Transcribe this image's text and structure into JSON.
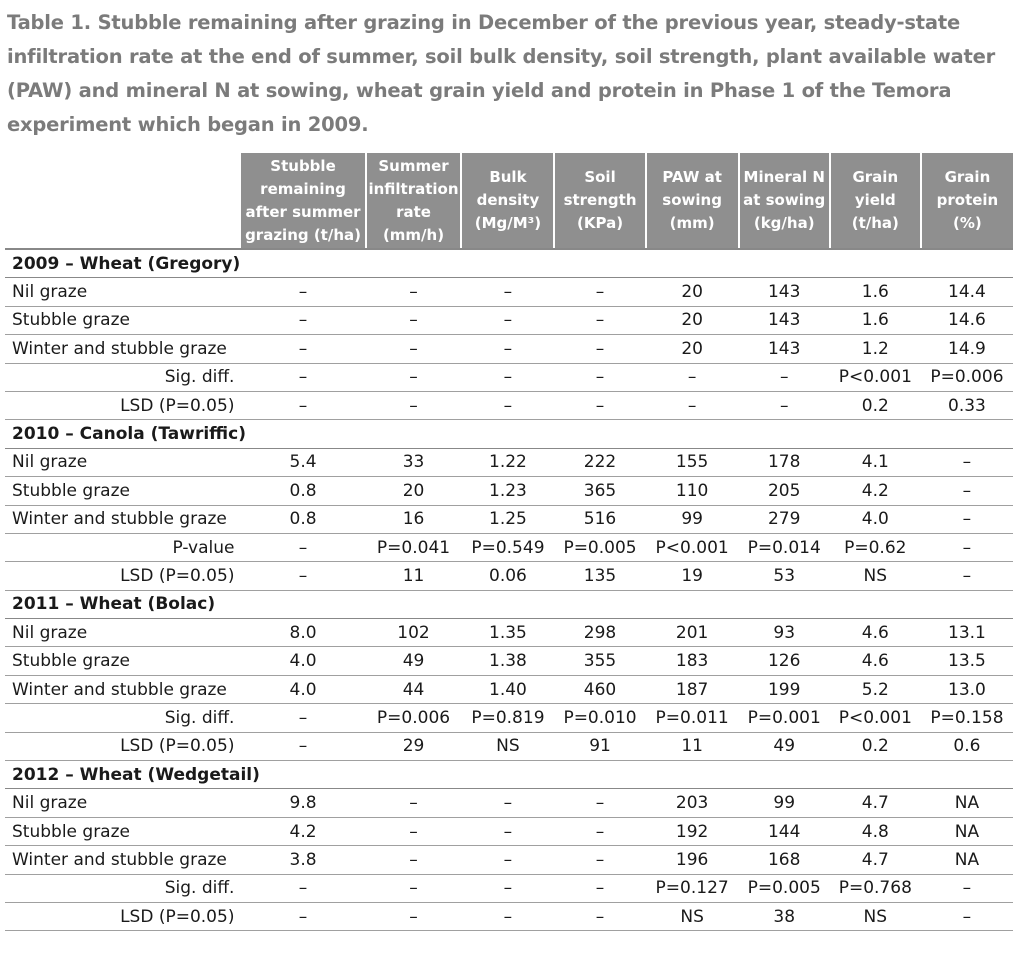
{
  "title": "Table 1. Stubble remaining after grazing in December of the previous year, steady-state infiltration rate at the end of summer, soil bulk density, soil strength, plant available water (PAW) and mineral N at sowing, wheat grain yield and protein in Phase 1 of the Temora experiment which began in 2009.",
  "columns": [
    "Stubble remaining after summer grazing (t/ha)",
    "Summer infiltration rate (mm/h)",
    "Bulk density (Mg/M³)",
    "Soil strength (KPa)",
    "PAW at sowing (mm)",
    "Mineral N at sowing (kg/ha)",
    "Grain yield (t/ha)",
    "Grain protein (%)"
  ],
  "groups": [
    {
      "name": "2009 – Wheat (Gregory)",
      "rows": [
        {
          "label": "Nil graze",
          "stat": false,
          "values": [
            "–",
            "–",
            "–",
            "–",
            "20",
            "143",
            "1.6",
            "14.4"
          ]
        },
        {
          "label": "Stubble graze",
          "stat": false,
          "values": [
            "–",
            "–",
            "–",
            "–",
            "20",
            "143",
            "1.6",
            "14.6"
          ]
        },
        {
          "label": "Winter and stubble graze",
          "stat": false,
          "values": [
            "–",
            "–",
            "–",
            "–",
            "20",
            "143",
            "1.2",
            "14.9"
          ]
        },
        {
          "label": "Sig. diff.",
          "stat": true,
          "values": [
            "–",
            "–",
            "–",
            "–",
            "–",
            "–",
            "P<0.001",
            "P=0.006"
          ]
        },
        {
          "label": "LSD (P=0.05)",
          "stat": true,
          "values": [
            "–",
            "–",
            "–",
            "–",
            "–",
            "–",
            "0.2",
            "0.33"
          ]
        }
      ]
    },
    {
      "name": "2010 – Canola (Tawriffic)",
      "rows": [
        {
          "label": "Nil graze",
          "stat": false,
          "values": [
            "5.4",
            "33",
            "1.22",
            "222",
            "155",
            "178",
            "4.1",
            "–"
          ]
        },
        {
          "label": "Stubble graze",
          "stat": false,
          "values": [
            "0.8",
            "20",
            "1.23",
            "365",
            "110",
            "205",
            "4.2",
            "–"
          ]
        },
        {
          "label": "Winter and stubble graze",
          "stat": false,
          "values": [
            "0.8",
            "16",
            "1.25",
            "516",
            "99",
            "279",
            "4.0",
            "–"
          ]
        },
        {
          "label": "P-value",
          "stat": true,
          "values": [
            "–",
            "P=0.041",
            "P=0.549",
            "P=0.005",
            "P<0.001",
            "P=0.014",
            "P=0.62",
            "–"
          ]
        },
        {
          "label": "LSD (P=0.05)",
          "stat": true,
          "values": [
            "–",
            "11",
            "0.06",
            "135",
            "19",
            "53",
            "NS",
            "–"
          ]
        }
      ]
    },
    {
      "name": "2011 – Wheat (Bolac)",
      "rows": [
        {
          "label": "Nil graze",
          "stat": false,
          "values": [
            "8.0",
            "102",
            "1.35",
            "298",
            "201",
            "93",
            "4.6",
            "13.1"
          ]
        },
        {
          "label": "Stubble graze",
          "stat": false,
          "values": [
            "4.0",
            "49",
            "1.38",
            "355",
            "183",
            "126",
            "4.6",
            "13.5"
          ]
        },
        {
          "label": "Winter and stubble graze",
          "stat": false,
          "values": [
            "4.0",
            "44",
            "1.40",
            "460",
            "187",
            "199",
            "5.2",
            "13.0"
          ]
        },
        {
          "label": "Sig. diff.",
          "stat": true,
          "values": [
            "–",
            "P=0.006",
            "P=0.819",
            "P=0.010",
            "P=0.011",
            "P=0.001",
            "P<0.001",
            "P=0.158"
          ]
        },
        {
          "label": "LSD (P=0.05)",
          "stat": true,
          "values": [
            "–",
            "29",
            "NS",
            "91",
            "11",
            "49",
            "0.2",
            "0.6"
          ]
        }
      ]
    },
    {
      "name": "2012 – Wheat (Wedgetail)",
      "rows": [
        {
          "label": "Nil graze",
          "stat": false,
          "values": [
            "9.8",
            "–",
            "–",
            "–",
            "203",
            "99",
            "4.7",
            "NA"
          ]
        },
        {
          "label": "Stubble graze",
          "stat": false,
          "values": [
            "4.2",
            "–",
            "–",
            "–",
            "192",
            "144",
            "4.8",
            "NA"
          ]
        },
        {
          "label": "Winter and stubble graze",
          "stat": false,
          "values": [
            "3.8",
            "–",
            "–",
            "–",
            "196",
            "168",
            "4.7",
            "NA"
          ]
        },
        {
          "label": "Sig. diff.",
          "stat": true,
          "values": [
            "–",
            "–",
            "–",
            "–",
            "P=0.127",
            "P=0.005",
            "P=0.768",
            "–"
          ]
        },
        {
          "label": "LSD (P=0.05)",
          "stat": true,
          "values": [
            "–",
            "–",
            "–",
            "–",
            "NS",
            "38",
            "NS",
            "–"
          ]
        }
      ]
    }
  ]
}
